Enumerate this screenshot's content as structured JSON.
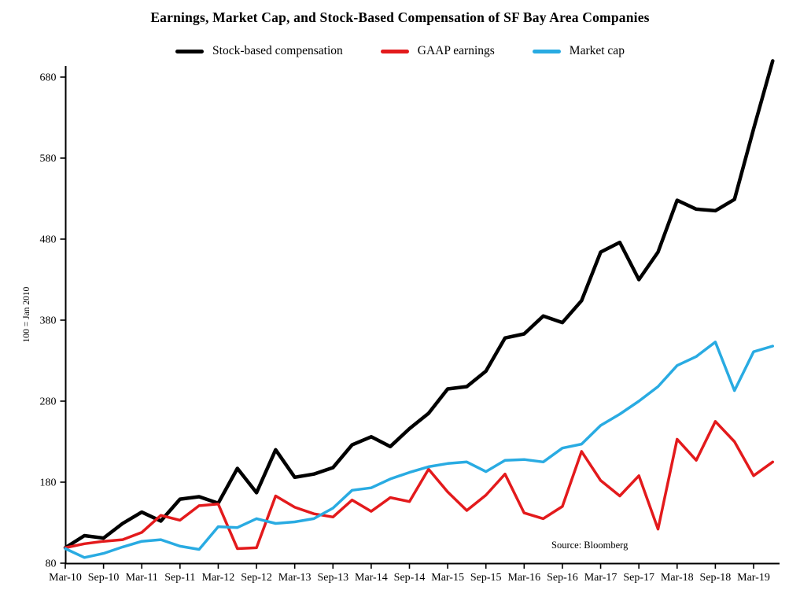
{
  "chart_data": {
    "type": "line",
    "title": "Earnings, Market Cap, and Stock-Based Compensation of SF Bay Area Companies",
    "xlabel": "",
    "ylabel": "100 = Jan 2010",
    "source": "Source: Bloomberg",
    "grid": false,
    "legend_position": "top",
    "ylim": [
      80,
      695
    ],
    "yticks": [
      80,
      180,
      280,
      380,
      480,
      580,
      680
    ],
    "x_tick_step": 2,
    "x_tick_labels": [
      "Mar-10",
      "Sep-10",
      "Mar-11",
      "Sep-11",
      "Mar-12",
      "Sep-12",
      "Mar-13",
      "Sep-13",
      "Mar-14",
      "Sep-14",
      "Mar-15",
      "Sep-15",
      "Mar-16",
      "Sep-16",
      "Mar-17",
      "Sep-17",
      "Mar-18",
      "Sep-18",
      "Mar-19"
    ],
    "x": [
      "Mar-10",
      "Jun-10",
      "Sep-10",
      "Dec-10",
      "Mar-11",
      "Jun-11",
      "Sep-11",
      "Dec-11",
      "Mar-12",
      "Jun-12",
      "Sep-12",
      "Dec-12",
      "Mar-13",
      "Jun-13",
      "Sep-13",
      "Dec-13",
      "Mar-14",
      "Jun-14",
      "Sep-14",
      "Dec-14",
      "Mar-15",
      "Jun-15",
      "Sep-15",
      "Dec-15",
      "Mar-16",
      "Jun-16",
      "Sep-16",
      "Dec-16",
      "Mar-17",
      "Jun-17",
      "Sep-17",
      "Dec-17",
      "Mar-18",
      "Jun-18",
      "Sep-18",
      "Dec-18",
      "Mar-19",
      "Jun-19"
    ],
    "series": [
      {
        "name": "Stock-based compensation",
        "color": "#000000",
        "line_width": 4.5,
        "values": [
          99,
          114,
          111,
          129,
          143,
          132,
          159,
          162,
          154,
          197,
          167,
          220,
          186,
          190,
          198,
          226,
          236,
          224,
          246,
          265,
          295,
          298,
          317,
          358,
          363,
          385,
          377,
          404,
          464,
          476,
          430,
          464,
          528,
          517,
          515,
          529,
          616,
          700
        ]
      },
      {
        "name": "GAAP earnings",
        "color": "#e31a1c",
        "line_width": 3.5,
        "values": [
          99,
          104,
          107,
          109,
          118,
          139,
          133,
          151,
          153,
          98,
          99,
          163,
          149,
          141,
          137,
          158,
          144,
          161,
          156,
          196,
          168,
          145,
          164,
          190,
          142,
          135,
          150,
          218,
          182,
          163,
          188,
          122,
          233,
          207,
          255,
          230,
          188,
          205
        ]
      },
      {
        "name": "Market cap",
        "color": "#29abe2",
        "line_width": 3.5,
        "values": [
          98,
          87,
          92,
          100,
          107,
          109,
          101,
          97,
          125,
          124,
          135,
          129,
          131,
          135,
          148,
          170,
          173,
          184,
          192,
          199,
          203,
          205,
          193,
          207,
          208,
          205,
          222,
          227,
          250,
          264,
          280,
          298,
          324,
          335,
          353,
          293,
          341,
          348
        ]
      }
    ]
  }
}
